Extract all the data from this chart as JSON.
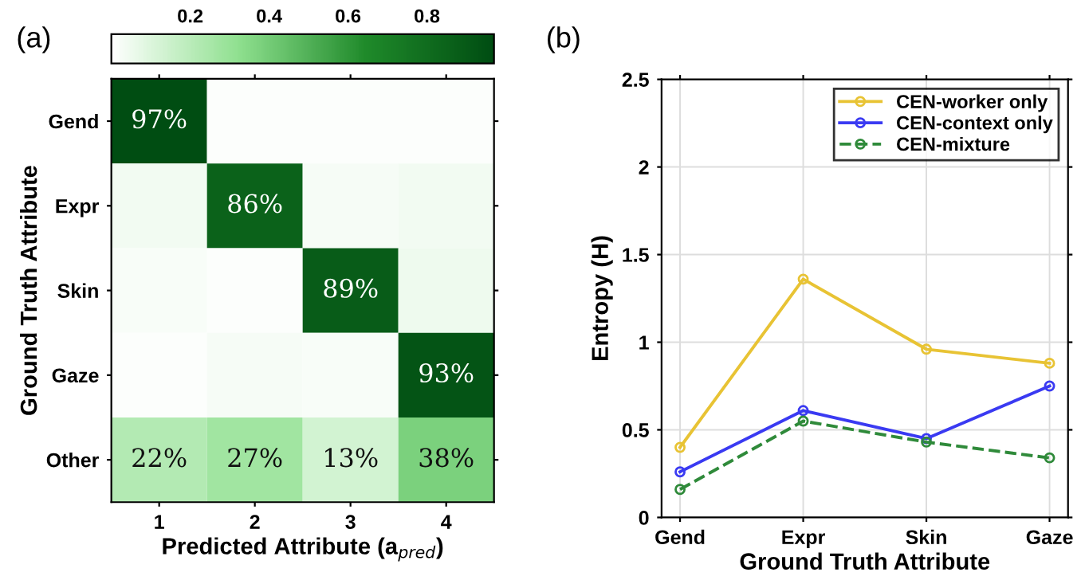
{
  "chart_data": [
    {
      "type": "heatmap",
      "title": "(a)",
      "xlabel": "Predicted Attribute (a$_{pred}$)",
      "ylabel": "Ground Truth Attribute",
      "categories": [
        "1",
        "2",
        "3",
        "4"
      ],
      "y_categories": [
        "Gend",
        "Expr",
        "Skin",
        "Gaze",
        "Other"
      ],
      "cells": [
        [
          0.97,
          0.01,
          0.01,
          0.01
        ],
        [
          0.04,
          0.86,
          0.03,
          0.04
        ],
        [
          0.02,
          0.01,
          0.89,
          0.05
        ],
        [
          0.01,
          0.03,
          0.02,
          0.93
        ],
        [
          0.22,
          0.27,
          0.13,
          0.38
        ]
      ],
      "cell_labels": [
        [
          "97%",
          null,
          null,
          null
        ],
        [
          null,
          "86%",
          null,
          null
        ],
        [
          null,
          null,
          "89%",
          null
        ],
        [
          null,
          null,
          null,
          "93%"
        ],
        [
          "22%",
          "27%",
          "13%",
          "38%"
        ]
      ],
      "clim": [
        0,
        0.97
      ],
      "cticks": [
        0.2,
        0.4,
        0.6,
        0.8
      ]
    },
    {
      "type": "line",
      "title": "(b)",
      "xlabel": "Ground Truth Attribute",
      "ylabel": "Entropy (H)",
      "categories": [
        "Gend",
        "Expr",
        "Skin",
        "Gaze"
      ],
      "series": [
        {
          "name": "CEN-worker only",
          "color": "#e8c334",
          "values": [
            0.4,
            1.36,
            0.96,
            0.88
          ]
        },
        {
          "name": "CEN-context only",
          "color": "#3a3af2",
          "values": [
            0.26,
            0.61,
            0.45,
            0.75
          ]
        },
        {
          "name": "CEN-mixture",
          "color": "#2f8a3a",
          "values": [
            0.16,
            0.55,
            0.43,
            0.34
          ],
          "line_style": "dashed"
        }
      ],
      "ylim": [
        0,
        2.5
      ],
      "yticks": [
        0,
        {
          "value": 0.5,
          "label": "0.5"
        },
        1,
        {
          "value": 1.5,
          "label": "1.5"
        },
        2,
        {
          "value": 2.5,
          "label": "2.5"
        }
      ],
      "grid": true,
      "legend": "top right",
      "marker": "circle"
    }
  ]
}
